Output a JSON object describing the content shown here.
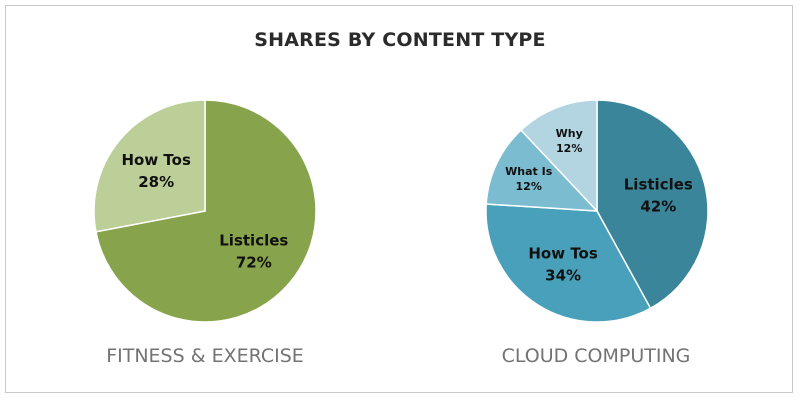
{
  "title": "SHARES BY CONTENT TYPE",
  "chart_data": [
    {
      "type": "pie",
      "caption": "FITNESS & EXERCISE",
      "slices": [
        {
          "label": "Listicles",
          "value": 72,
          "value_label": "72%",
          "color": "#87a34b",
          "label_size": "large"
        },
        {
          "label": "How Tos",
          "value": 28,
          "value_label": "28%",
          "color": "#bccf98",
          "label_size": "large"
        }
      ]
    },
    {
      "type": "pie",
      "caption": "CLOUD COMPUTING",
      "slices": [
        {
          "label": "Listicles",
          "value": 42,
          "value_label": "42%",
          "color": "#3a8599",
          "label_size": "large"
        },
        {
          "label": "How Tos",
          "value": 34,
          "value_label": "34%",
          "color": "#48a0ba",
          "label_size": "large"
        },
        {
          "label": "What Is",
          "value": 12,
          "value_label": "12%",
          "color": "#7bbcd0",
          "label_size": "small"
        },
        {
          "label": "Why",
          "value": 12,
          "value_label": "12%",
          "color": "#b3d5e1",
          "label_size": "small"
        }
      ]
    }
  ]
}
